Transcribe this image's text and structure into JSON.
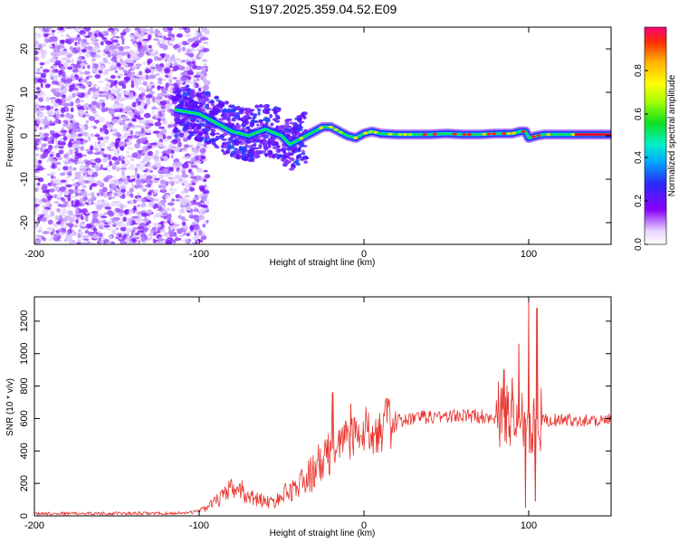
{
  "title": "S197.2025.359.04.52.E09",
  "chart_data": [
    {
      "type": "heatmap",
      "xlabel": "Height of straight line (km)",
      "ylabel": "Frequency (Hz)",
      "xlim": [
        -200,
        150
      ],
      "ylim": [
        -25,
        25
      ],
      "xticks": [
        -200,
        -100,
        0,
        100
      ],
      "yticks": [
        -20,
        -10,
        0,
        10,
        20
      ],
      "colorbar": {
        "label": "Normalized spectral amplitude",
        "range": [
          0,
          1
        ],
        "ticks": [
          "0.0",
          "0.2",
          "0.4",
          "0.6",
          "0.8"
        ]
      },
      "ridge": {
        "x": [
          -115,
          -100,
          -90,
          -80,
          -70,
          -60,
          -50,
          -45,
          -40,
          -35,
          -30,
          -25,
          -20,
          -15,
          -10,
          -5,
          0,
          5,
          10,
          20,
          30,
          40,
          50,
          60,
          70,
          80,
          90,
          95,
          98,
          100,
          105,
          110,
          120,
          130,
          140,
          150
        ],
        "y": [
          6,
          5,
          3,
          1,
          0,
          1.5,
          0,
          -2,
          -1,
          0,
          1,
          2,
          2,
          1,
          0,
          -0.5,
          0.5,
          1,
          0.5,
          0.3,
          0.3,
          0.3,
          0.5,
          0.3,
          0.3,
          0.5,
          0.5,
          1,
          1,
          -0.5,
          0,
          0.3,
          0.3,
          0.3,
          0.3,
          0.3
        ]
      }
    },
    {
      "type": "line",
      "xlabel": "Height of straight line (km)",
      "ylabel": "SNR (10 * v/v)",
      "xlim": [
        -200,
        150
      ],
      "ylim": [
        0,
        1350
      ],
      "xticks": [
        -200,
        -100,
        0,
        100
      ],
      "yticks": [
        0,
        200,
        400,
        600,
        800,
        1000,
        1200
      ],
      "color": "#e8312a",
      "envelope": {
        "x": [
          -200,
          -120,
          -105,
          -95,
          -90,
          -85,
          -80,
          -75,
          -70,
          -60,
          -55,
          -50,
          -45,
          -40,
          -35,
          -30,
          -25,
          -20,
          -15,
          -10,
          -5,
          0,
          5,
          10,
          20,
          30,
          40,
          50,
          60,
          70,
          80,
          90,
          100,
          110,
          120,
          130,
          140,
          150
        ],
        "y": [
          15,
          15,
          20,
          50,
          90,
          120,
          170,
          160,
          120,
          90,
          80,
          120,
          160,
          180,
          230,
          280,
          330,
          400,
          460,
          480,
          500,
          510,
          540,
          560,
          580,
          600,
          610,
          615,
          615,
          615,
          610,
          605,
          600,
          590,
          590,
          590,
          590,
          590
        ]
      },
      "spikes": [
        {
          "x": -19,
          "y": 760
        },
        {
          "x": -12,
          "y": 560
        },
        {
          "x": -8,
          "y": 690
        },
        {
          "x": 85,
          "y": 900
        },
        {
          "x": 90,
          "y": 850
        },
        {
          "x": 94,
          "y": 1060
        },
        {
          "x": 98,
          "y": 50
        },
        {
          "x": 100,
          "y": 1350
        },
        {
          "x": 105,
          "y": 1280
        },
        {
          "x": 104,
          "y": 90
        }
      ]
    }
  ]
}
